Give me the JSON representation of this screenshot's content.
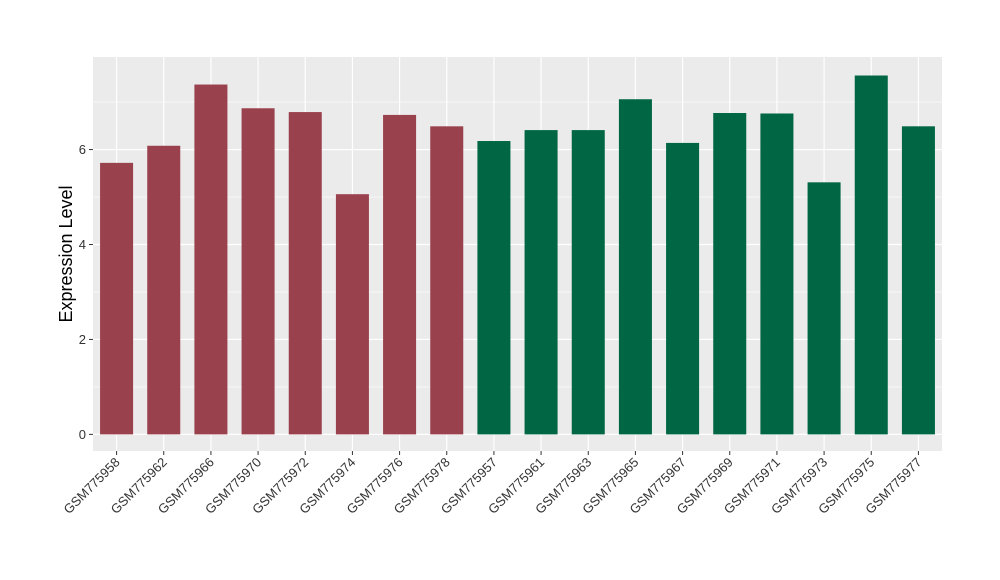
{
  "chart_data": {
    "type": "bar",
    "title": "",
    "xlabel": "",
    "ylabel": "Expression Level",
    "ylim": [
      -0.35,
      7.95
    ],
    "yticks": [
      0,
      2,
      4,
      6
    ],
    "grid": true,
    "legend": "none",
    "categories": [
      "GSM775958",
      "GSM775962",
      "GSM775966",
      "GSM775970",
      "GSM775972",
      "GSM775974",
      "GSM775976",
      "GSM775978",
      "GSM775957",
      "GSM775961",
      "GSM775963",
      "GSM775965",
      "GSM775967",
      "GSM775969",
      "GSM775971",
      "GSM775973",
      "GSM775975",
      "GSM775977"
    ],
    "values": [
      5.72,
      6.08,
      7.37,
      6.87,
      6.79,
      5.06,
      6.73,
      6.49,
      6.18,
      6.41,
      6.41,
      7.06,
      6.14,
      6.77,
      6.76,
      5.31,
      7.56,
      6.49
    ],
    "group_sizes": [
      8,
      10
    ],
    "colors": {
      "group_a": "#9A414E",
      "group_b": "#006644",
      "panel_bg": "#EBEBEB",
      "grid": "#FFFFFF"
    }
  }
}
